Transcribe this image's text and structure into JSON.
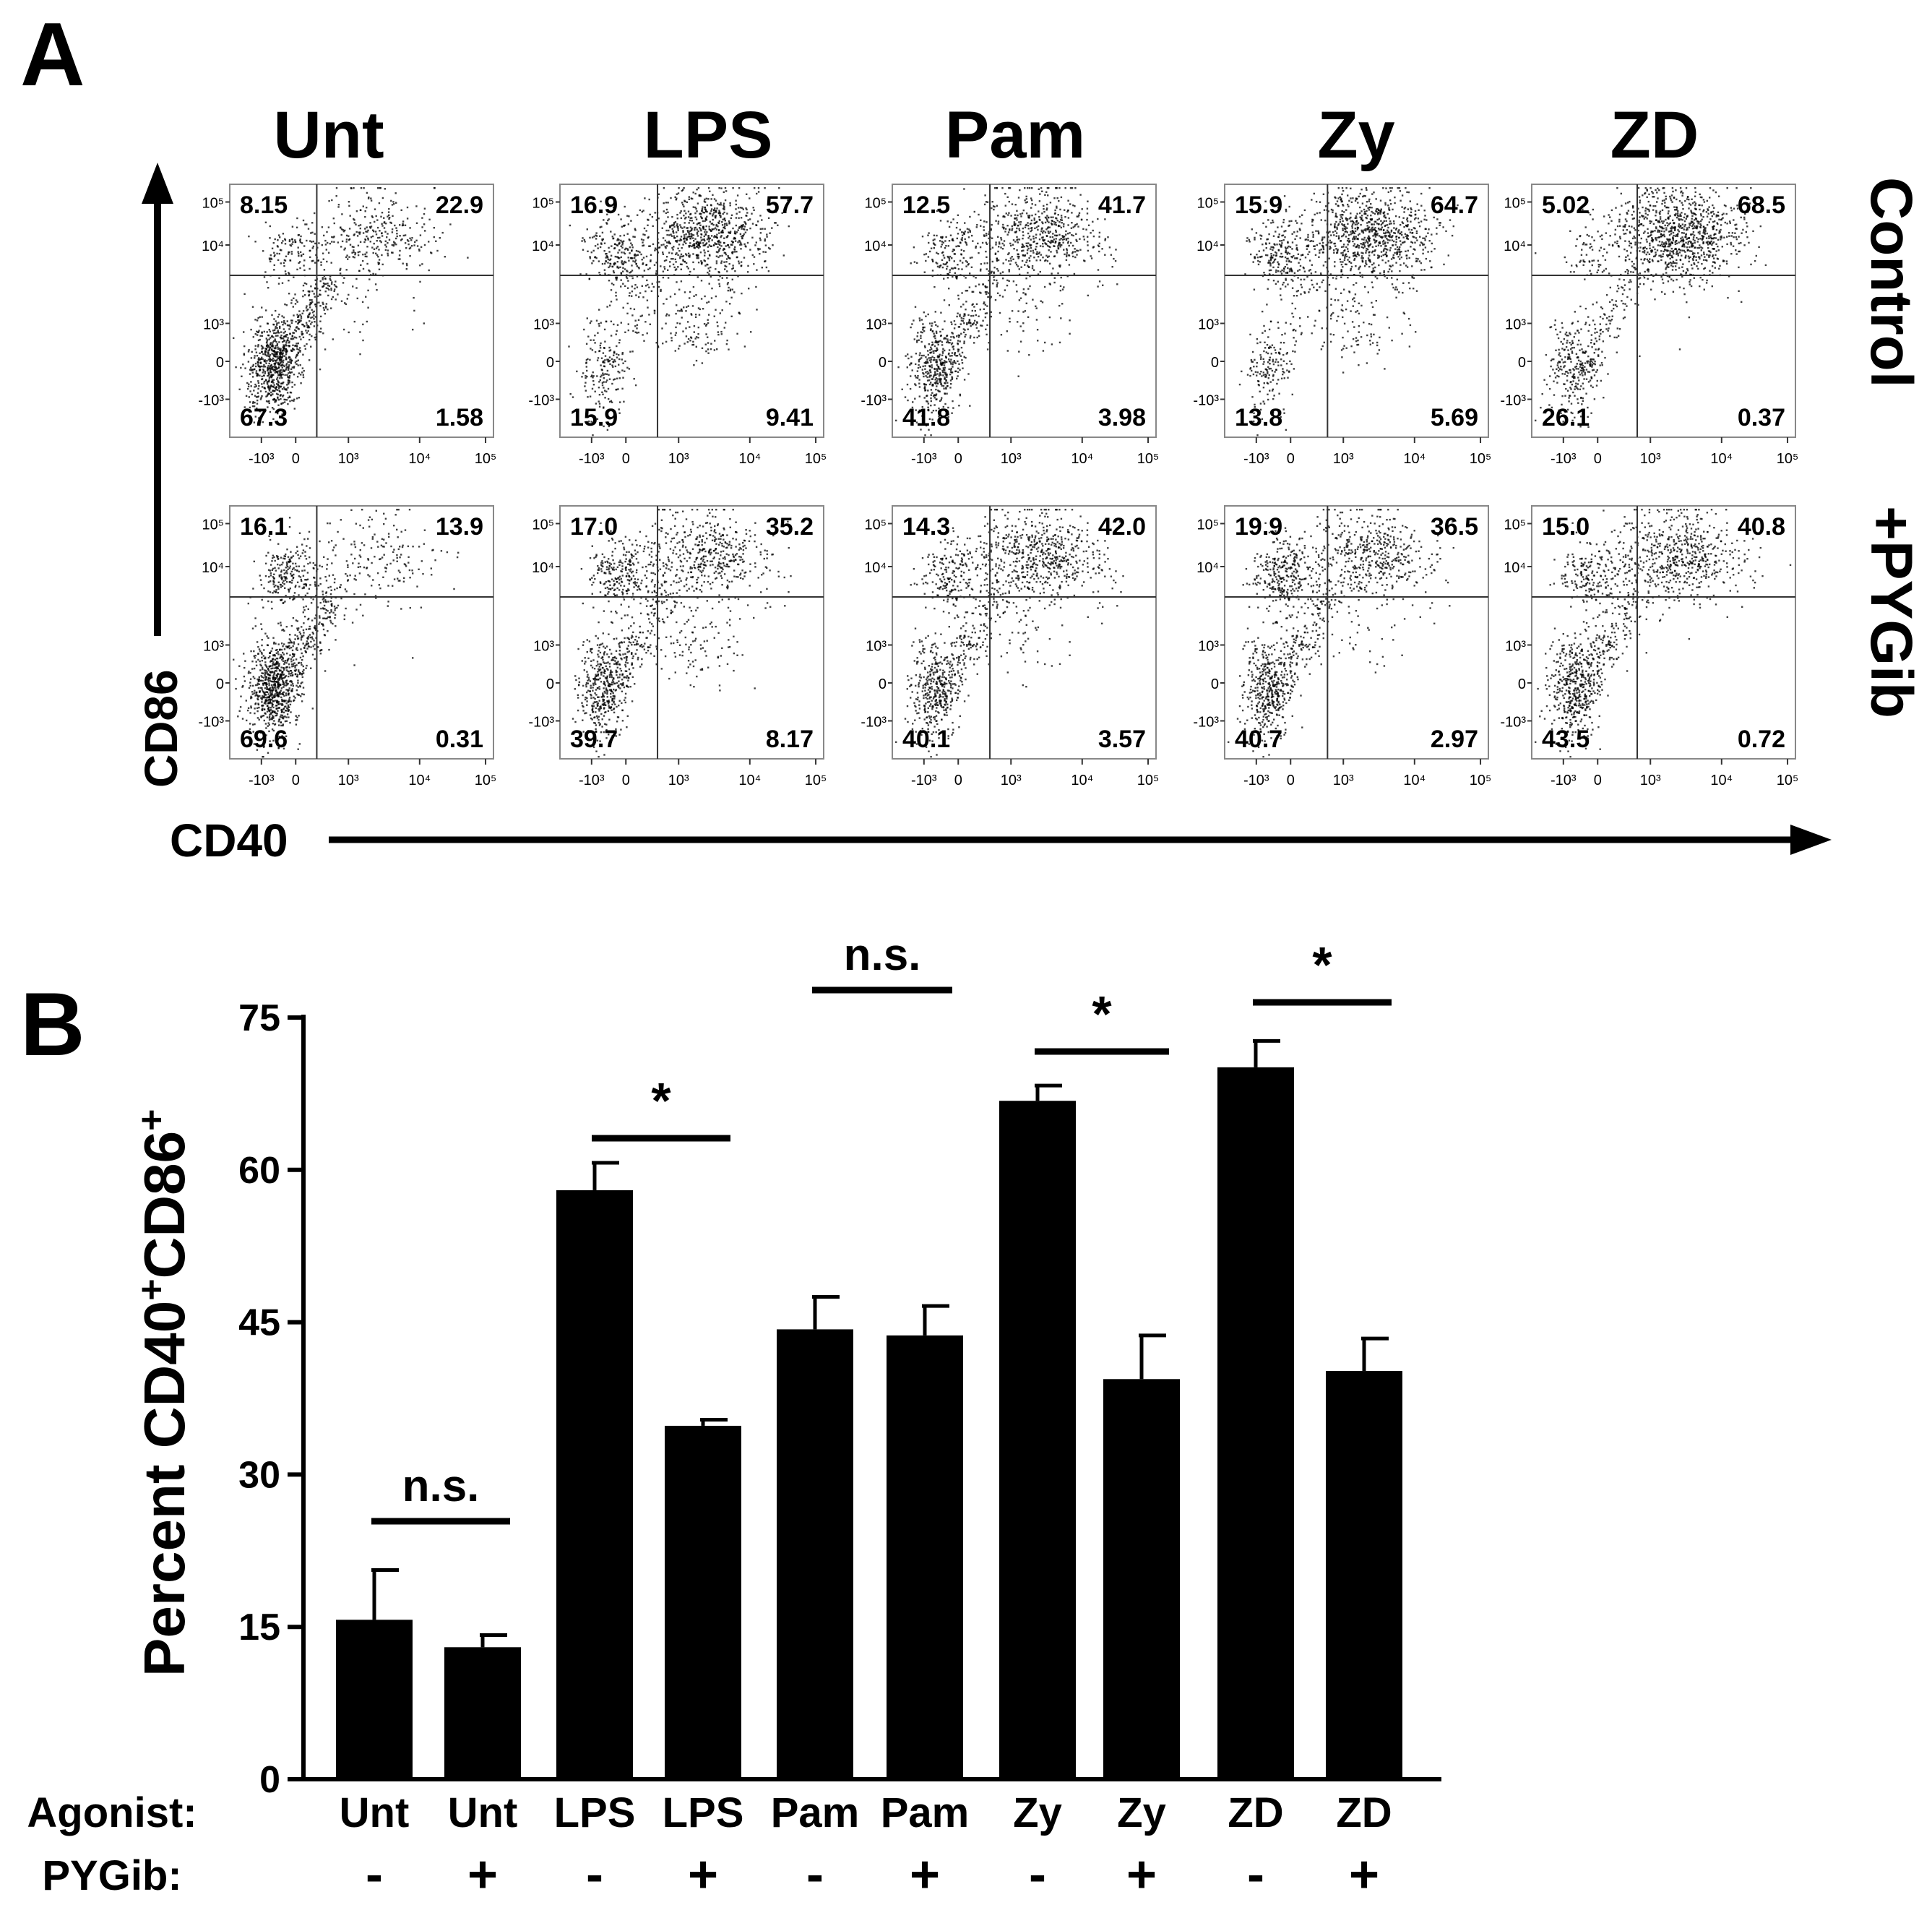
{
  "figure": {
    "panel_a_label": "A",
    "panel_b_label": "B"
  },
  "chart_data": [
    {
      "type": "scatter",
      "panel": "A",
      "description_label": "flow cytometry dot plots",
      "x_axis_label": "CD40",
      "y_axis_label": "CD86",
      "columns": [
        "Unt",
        "LPS",
        "Pam",
        "Zy",
        "ZD"
      ],
      "rows": [
        "Control",
        "+PYGib"
      ],
      "x_ticks": [
        "-10³",
        "0",
        "10³",
        "10⁴",
        "10⁵"
      ],
      "y_ticks": [
        "10⁵",
        "10⁴",
        "10³",
        "0",
        "-10³"
      ],
      "quadrant_order": [
        "upper-left",
        "upper-right",
        "lower-left",
        "lower-right"
      ],
      "quadrants": [
        [
          [
            "8.15",
            "22.9",
            "67.3",
            "1.58"
          ],
          [
            "16.9",
            "57.7",
            "15.9",
            "9.41"
          ],
          [
            "12.5",
            "41.7",
            "41.8",
            "3.98"
          ],
          [
            "15.9",
            "64.7",
            "13.8",
            "5.69"
          ],
          [
            "5.02",
            "68.5",
            "26.1",
            "0.37"
          ]
        ],
        [
          [
            "16.1",
            "13.9",
            "69.6",
            "0.31"
          ],
          [
            "17.0",
            "35.2",
            "39.7",
            "8.17"
          ],
          [
            "14.3",
            "42.0",
            "40.1",
            "3.57"
          ],
          [
            "19.9",
            "36.5",
            "40.7",
            "2.97"
          ],
          [
            "15.0",
            "40.8",
            "43.5",
            "0.72"
          ]
        ]
      ]
    },
    {
      "type": "bar",
      "panel": "B",
      "ylabel_main": "Percent CD40",
      "ylabel_sup1": "+",
      "ylabel_mid": "CD86",
      "ylabel_sup2": "+",
      "ylim": [
        0,
        75
      ],
      "yticks": [
        "0",
        "15",
        "30",
        "45",
        "60",
        "75"
      ],
      "categories": [
        "Unt",
        "Unt",
        "LPS",
        "LPS",
        "Pam",
        "Pam",
        "Zy",
        "Zy",
        "ZD",
        "ZD"
      ],
      "pygib": [
        "-",
        "+",
        "-",
        "+",
        "-",
        "+",
        "-",
        "+",
        "-",
        "+"
      ],
      "values": [
        15.7,
        13.0,
        58.0,
        34.8,
        44.3,
        43.7,
        66.8,
        39.4,
        70.1,
        40.2
      ],
      "errors": [
        4.9,
        1.2,
        2.7,
        0.6,
        3.2,
        2.9,
        1.5,
        4.3,
        2.6,
        3.2
      ],
      "row_label_agonist": "Agonist:",
      "row_label_pygib": "PYGib:",
      "significance": [
        {
          "pair": [
            0,
            1
          ],
          "label": "n.s."
        },
        {
          "pair": [
            2,
            3
          ],
          "label": "*"
        },
        {
          "pair": [
            4,
            5
          ],
          "label": "n.s."
        },
        {
          "pair": [
            6,
            7
          ],
          "label": "*"
        },
        {
          "pair": [
            8,
            9
          ],
          "label": "*"
        }
      ]
    }
  ]
}
